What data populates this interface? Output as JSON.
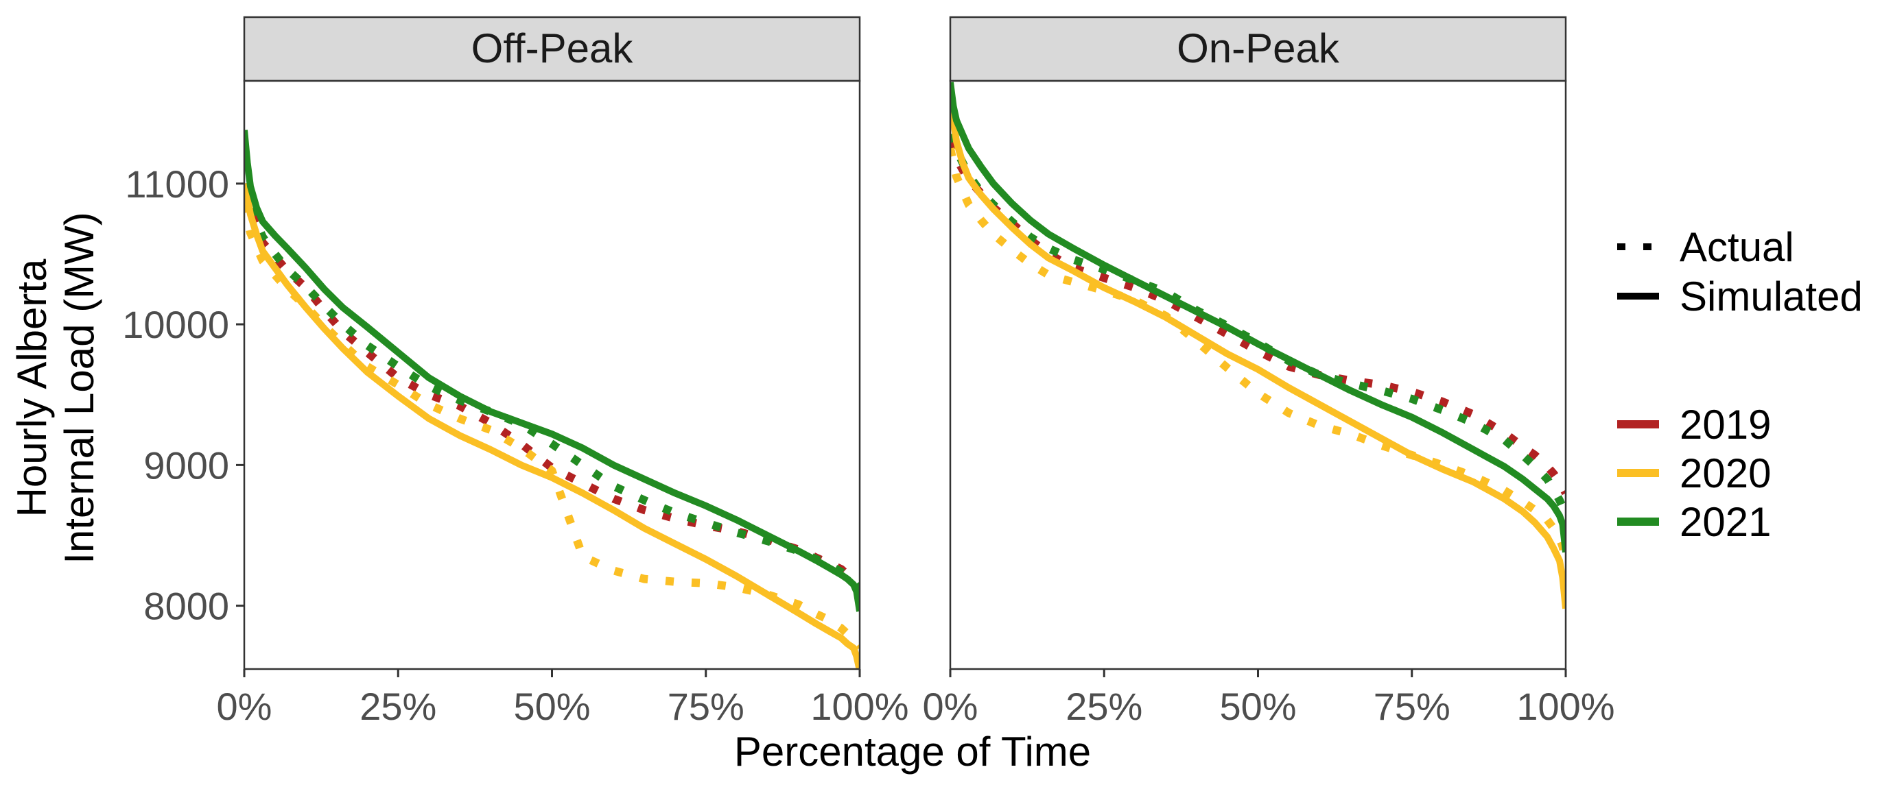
{
  "chart_data": {
    "type": "line",
    "subtype": "load-duration-curve (faceted)",
    "xlabel": "Percentage of Time",
    "ylabel_lines": [
      "Hourly Alberta",
      "Internal Load (MW)"
    ],
    "x_ticks": [
      "0%",
      "25%",
      "50%",
      "75%",
      "100%"
    ],
    "x_tick_values": [
      0,
      25,
      50,
      75,
      100
    ],
    "xlim": [
      0,
      100
    ],
    "y_ticks": [
      "8000",
      "9000",
      "10000",
      "11000"
    ],
    "y_tick_values": [
      8000,
      9000,
      10000,
      11000
    ],
    "ylim": [
      7550,
      11730
    ],
    "grid": false,
    "legend_position": "right",
    "legend_linetype": [
      {
        "label": "Actual",
        "style": "dotted"
      },
      {
        "label": "Simulated",
        "style": "solid"
      }
    ],
    "legend_color": [
      {
        "label": "2019",
        "color": "#b22222"
      },
      {
        "label": "2020",
        "color": "#fbbf24"
      },
      {
        "label": "2021",
        "color": "#228b22"
      }
    ],
    "x": [
      0,
      0.5,
      1,
      2,
      3,
      5,
      7,
      10,
      13,
      16,
      20,
      25,
      30,
      35,
      40,
      45,
      50,
      55,
      60,
      65,
      70,
      75,
      80,
      85,
      90,
      93,
      95,
      97,
      98,
      99,
      99.5,
      100
    ],
    "panels": [
      {
        "title": "Off-Peak",
        "series": [
          {
            "name": "2019",
            "linetype": "Actual",
            "color": "#b22222",
            "values": [
              10950,
              10880,
              10800,
              10700,
              10580,
              10480,
              10380,
              10260,
              10100,
              9950,
              9800,
              9620,
              9500,
              9420,
              9300,
              9150,
              8980,
              8870,
              8760,
              8680,
              8620,
              8570,
              8530,
              8470,
              8400,
              8340,
              8300,
              8260,
              8220,
              8180,
              8150,
              8120
            ]
          },
          {
            "name": "2020",
            "linetype": "Actual",
            "color": "#fbbf24",
            "values": [
              10850,
              10750,
              10650,
              10550,
              10450,
              10350,
              10250,
              10130,
              9990,
              9860,
              9700,
              9570,
              9430,
              9330,
              9250,
              9120,
              8960,
              8350,
              8250,
              8190,
              8170,
              8160,
              8130,
              8080,
              8010,
              7940,
              7900,
              7840,
              7800,
              7760,
              7730,
              7700
            ]
          },
          {
            "name": "2021",
            "linetype": "Actual",
            "color": "#228b22",
            "values": [
              11000,
              10900,
              10820,
              10720,
              10620,
              10500,
              10390,
              10270,
              10130,
              10000,
              9850,
              9700,
              9560,
              9460,
              9380,
              9290,
              9150,
              9000,
              8850,
              8750,
              8660,
              8590,
              8520,
              8460,
              8390,
              8330,
              8290,
              8240,
              8200,
              8170,
              8140,
              8100
            ]
          },
          {
            "name": "2020",
            "linetype": "Simulated",
            "color": "#fbbf24",
            "values": [
              11000,
              10900,
              10780,
              10640,
              10520,
              10400,
              10280,
              10120,
              9970,
              9830,
              9660,
              9490,
              9330,
              9210,
              9110,
              9000,
              8910,
              8800,
              8680,
              8550,
              8440,
              8330,
              8210,
              8080,
              7950,
              7870,
              7820,
              7770,
              7730,
              7700,
              7640,
              7540
            ]
          },
          {
            "name": "2021",
            "linetype": "Simulated",
            "color": "#228b22",
            "values": [
              11380,
              11150,
              10980,
              10830,
              10730,
              10630,
              10540,
              10400,
              10250,
              10120,
              9980,
              9800,
              9620,
              9490,
              9380,
              9300,
              9220,
              9120,
              9000,
              8900,
              8800,
              8710,
              8610,
              8500,
              8390,
              8320,
              8270,
              8220,
              8190,
              8150,
              8100,
              7960
            ]
          }
        ]
      },
      {
        "title": "On-Peak",
        "series": [
          {
            "name": "2019",
            "linetype": "Actual",
            "color": "#b22222",
            "values": [
              11300,
              11250,
              11180,
              11100,
              11030,
              10930,
              10830,
              10720,
              10600,
              10500,
              10400,
              10330,
              10260,
              10170,
              10050,
              9930,
              9810,
              9700,
              9640,
              9600,
              9570,
              9520,
              9450,
              9360,
              9230,
              9130,
              9070,
              8990,
              8940,
              8880,
              8840,
              8800
            ]
          },
          {
            "name": "2020",
            "linetype": "Actual",
            "color": "#fbbf24",
            "values": [
              11250,
              11150,
              11050,
              10950,
              10850,
              10740,
              10640,
              10530,
              10430,
              10350,
              10300,
              10240,
              10170,
              10060,
              9880,
              9690,
              9510,
              9370,
              9280,
              9220,
              9140,
              9070,
              9000,
              8920,
              8820,
              8740,
              8680,
              8610,
              8550,
              8480,
              8420,
              8300
            ]
          },
          {
            "name": "2021",
            "linetype": "Actual",
            "color": "#228b22",
            "values": [
              11350,
              11300,
              11240,
              11150,
              11060,
              10940,
              10850,
              10730,
              10620,
              10540,
              10460,
              10390,
              10310,
              10230,
              10100,
              9990,
              9870,
              9740,
              9640,
              9580,
              9530,
              9470,
              9390,
              9300,
              9180,
              9070,
              8990,
              8900,
              8830,
              8750,
              8700,
              8600
            ]
          },
          {
            "name": "2020",
            "linetype": "Simulated",
            "color": "#fbbf24",
            "values": [
              11600,
              11450,
              11300,
              11150,
              11040,
              10920,
              10820,
              10690,
              10570,
              10470,
              10380,
              10260,
              10160,
              10050,
              9920,
              9790,
              9680,
              9550,
              9430,
              9310,
              9190,
              9070,
              8970,
              8880,
              8760,
              8670,
              8590,
              8490,
              8410,
              8320,
              8200,
              7980
            ]
          },
          {
            "name": "2021",
            "linetype": "Simulated",
            "color": "#228b22",
            "values": [
              11720,
              11550,
              11450,
              11350,
              11250,
              11120,
              11000,
              10860,
              10740,
              10640,
              10540,
              10420,
              10310,
              10200,
              10090,
              9980,
              9860,
              9750,
              9640,
              9530,
              9430,
              9340,
              9230,
              9110,
              8990,
              8900,
              8830,
              8760,
              8710,
              8640,
              8580,
              8380
            ]
          }
        ]
      }
    ]
  }
}
